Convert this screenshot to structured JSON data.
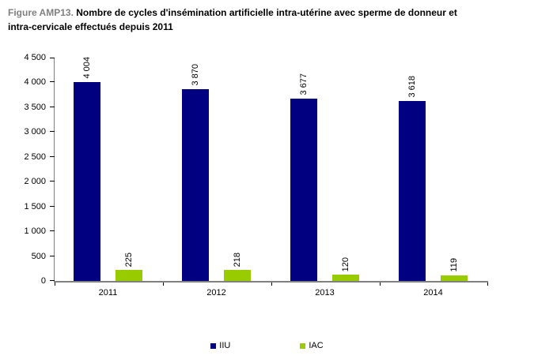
{
  "figure": {
    "title_prefix": "Figure AMP13.",
    "title_text": "Nombre de cycles d'insémination artificielle intra-utérine avec sperme de donneur et intra-cervicale effectués depuis 2011"
  },
  "chart_data": {
    "type": "bar",
    "categories": [
      "2011",
      "2012",
      "2013",
      "2014"
    ],
    "series": [
      {
        "name": "IIU",
        "color": "#000080",
        "values": [
          4004,
          3870,
          3677,
          3618
        ],
        "value_labels": [
          "4 004",
          "3 870",
          "3 677",
          "3 618"
        ]
      },
      {
        "name": "IAC",
        "color": "#99CC00",
        "values": [
          225,
          218,
          120,
          119
        ],
        "value_labels": [
          "225",
          "218",
          "120",
          "119"
        ]
      }
    ],
    "xlabel": "",
    "ylabel": "",
    "ylim": [
      0,
      4500
    ],
    "ytick_step": 500,
    "ytick_labels": [
      "0",
      "500",
      "1 000",
      "1 500",
      "2 000",
      "2 500",
      "3 000",
      "3 500",
      "4 000",
      "4 500"
    ],
    "grid": false,
    "value_label_rotation": 90,
    "legend_position": "bottom",
    "axis_color": "#808080",
    "tick_color": "#000000",
    "title_prefix_color": "#808080"
  }
}
